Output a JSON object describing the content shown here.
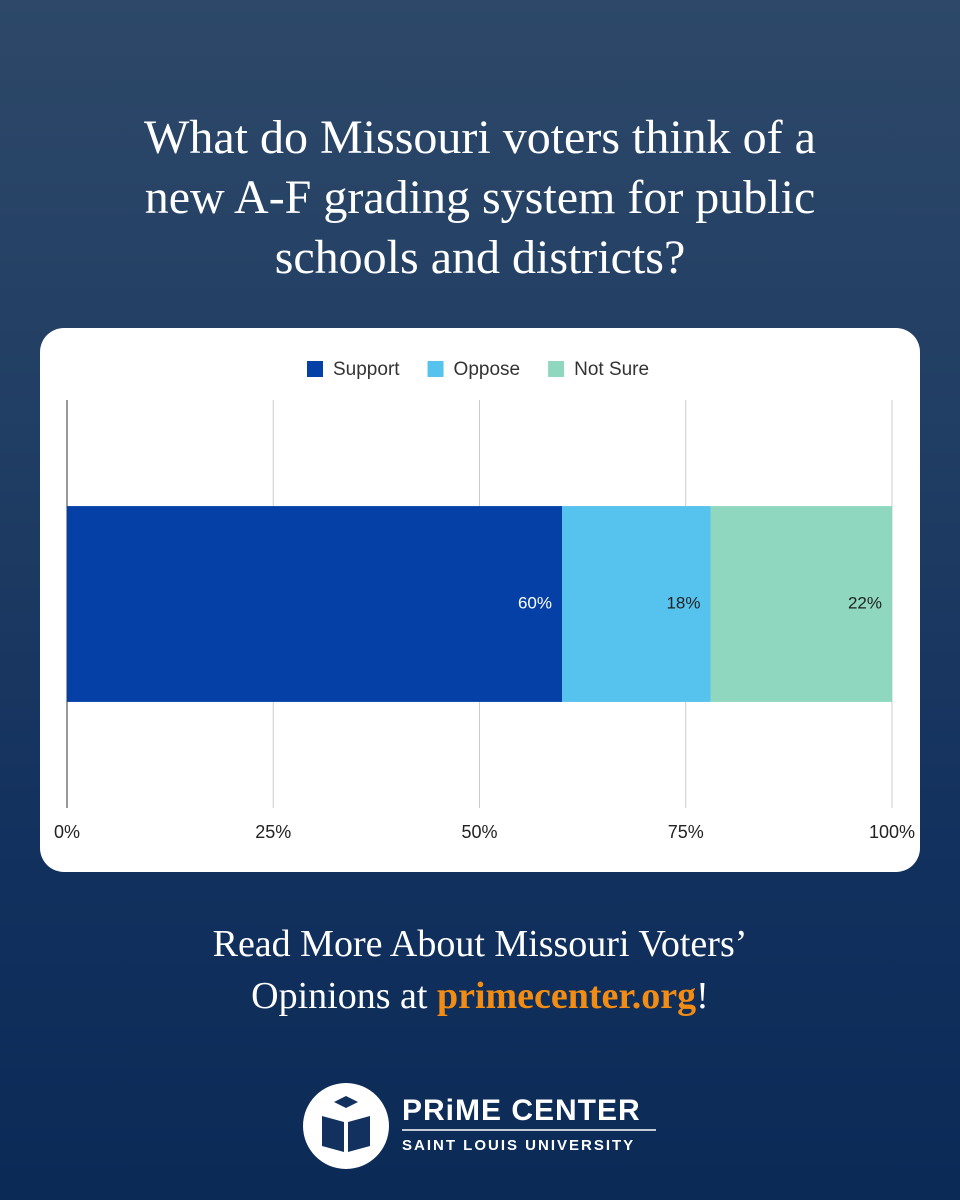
{
  "chart_data": {
    "type": "stacked-bar-horizontal",
    "title": "What do Missouri voters think of a new A-F grading system for public schools and districts?",
    "categories": [
      null
    ],
    "series": [
      {
        "name": "Support",
        "color": "#0540a6",
        "values": [
          60
        ],
        "value_labels": [
          "60%"
        ]
      },
      {
        "name": "Oppose",
        "color": "#56c2ee",
        "values": [
          18
        ],
        "value_labels": [
          "18%"
        ]
      },
      {
        "name": "Not Sure",
        "color": "#8fd8bf",
        "values": [
          22
        ],
        "value_labels": [
          "22%"
        ]
      }
    ],
    "xlim": [
      0,
      100
    ],
    "xticks": [
      {
        "value": 0,
        "label": "0%"
      },
      {
        "value": 25,
        "label": "25%"
      },
      {
        "value": 50,
        "label": "50%"
      },
      {
        "value": 75,
        "label": "75%"
      },
      {
        "value": 100,
        "label": "100%"
      }
    ],
    "grid": true,
    "legend": "top"
  },
  "footer": {
    "text": "Read More About Missouri Voters’ Opinions at",
    "link": "primecenter.org",
    "end": "!"
  },
  "logo": {
    "name": "PRiME CENTER",
    "subtitle": "SAINT LOUIS UNIVERSITY"
  }
}
